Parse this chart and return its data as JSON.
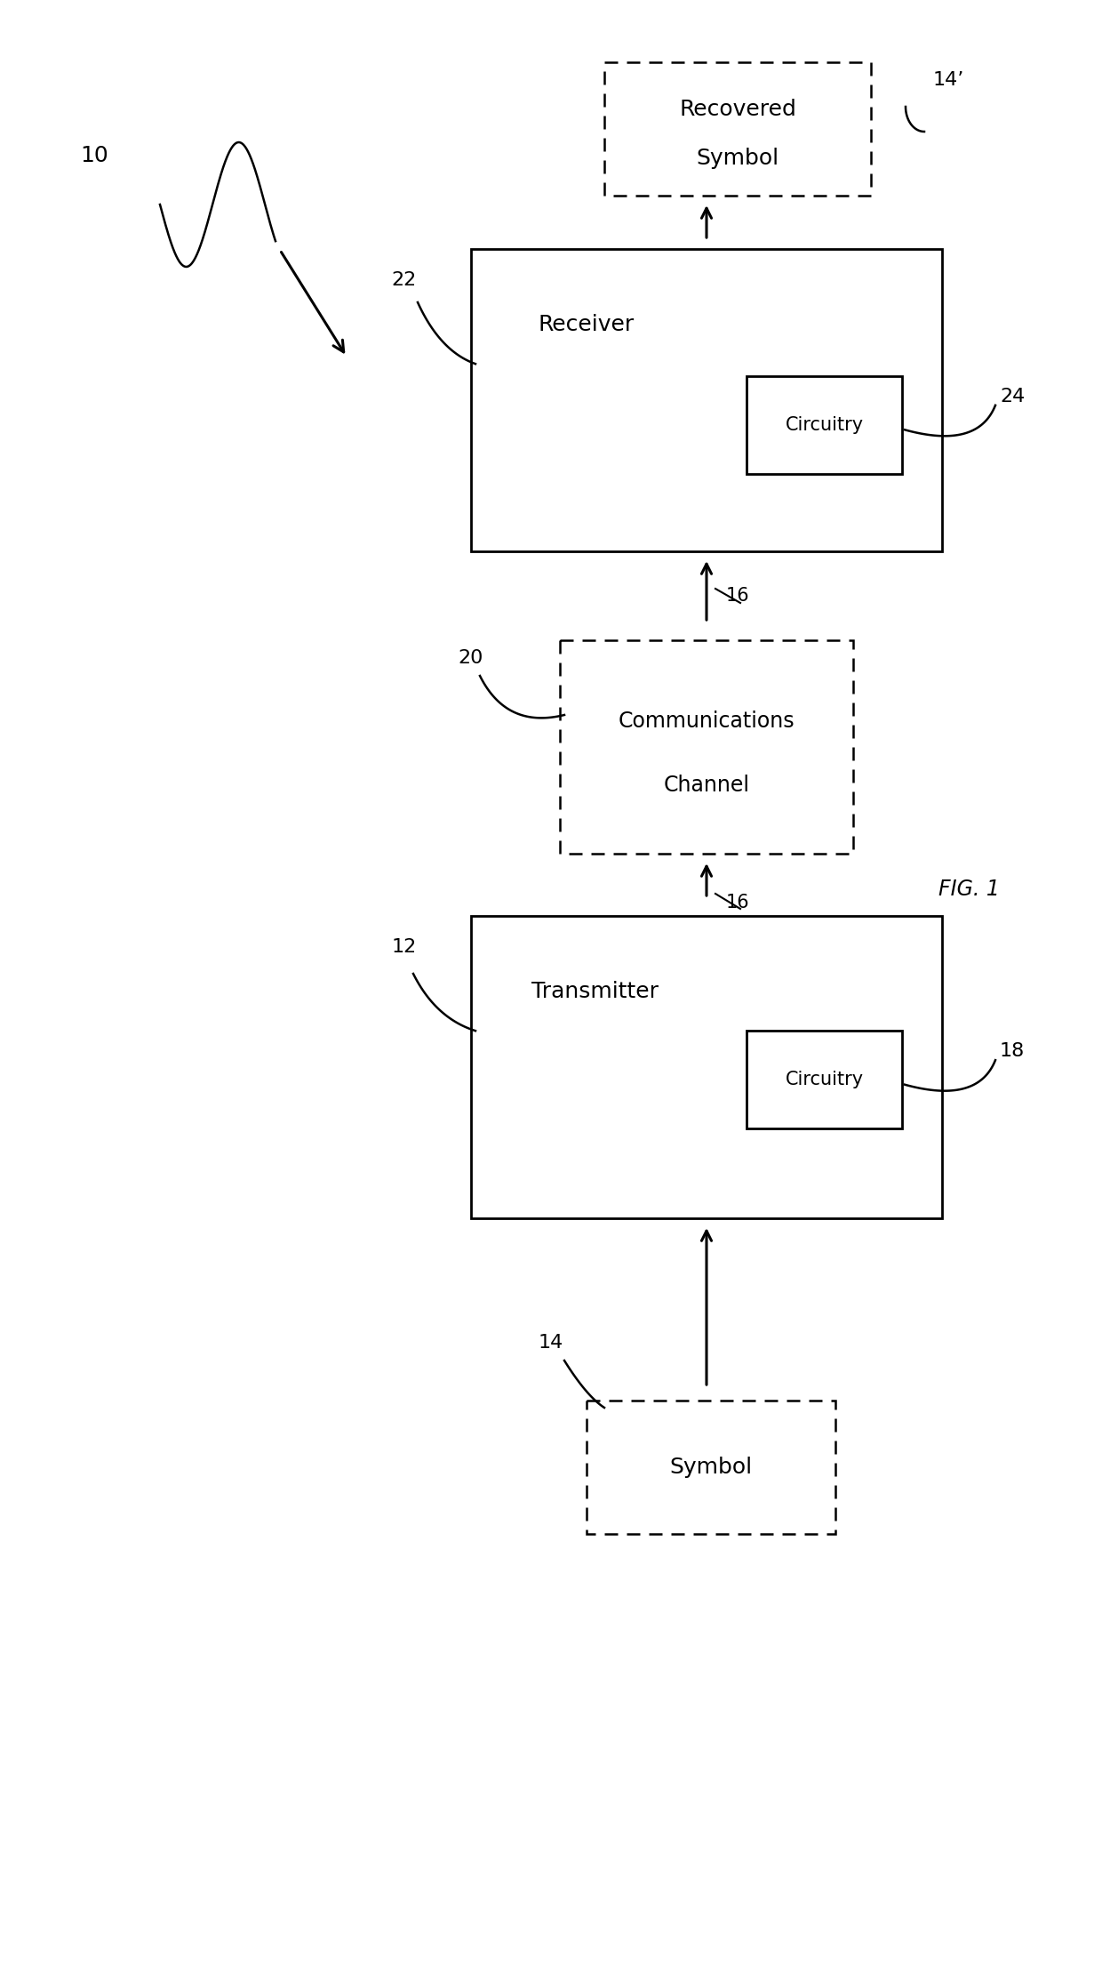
{
  "fig_width": 12.4,
  "fig_height": 22.12,
  "bg_color": "#ffffff",
  "title": "FIG. 1",
  "label_10": "10",
  "label_12": "12",
  "label_14": "14",
  "label_16a": "16",
  "label_16b": "16",
  "label_18": "18",
  "label_20": "20",
  "label_22": "22",
  "label_24": "24",
  "label_14prime": "14’",
  "solid_box_color": "#000000",
  "dashed_box_color": "#000000",
  "text_color": "#000000",
  "font_size_main": 18,
  "font_size_inner": 15,
  "font_size_num": 16,
  "font_size_fig": 17,
  "lw_solid": 2.0,
  "lw_dashed": 1.8,
  "lw_arrow": 2.2,
  "lw_curve": 1.8
}
